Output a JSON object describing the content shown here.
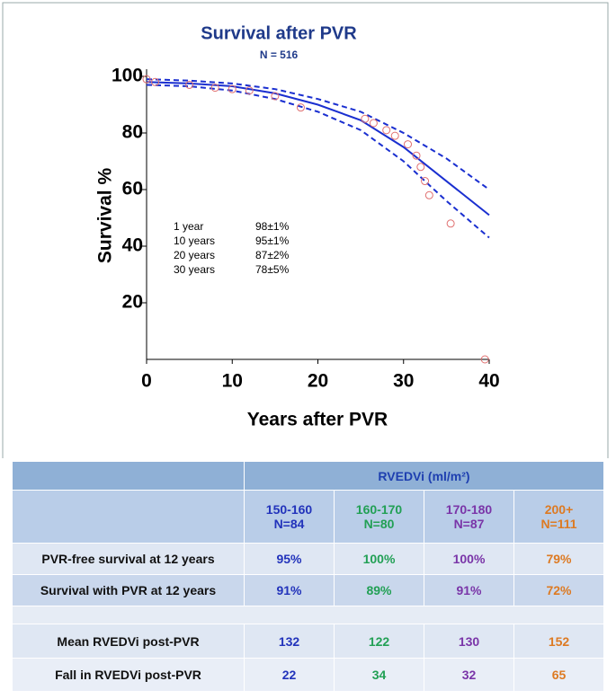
{
  "chart_data": {
    "type": "line",
    "title": "Survival after PVR",
    "subtitle": "N = 516",
    "y_label": "Survival %",
    "x_label": "Years after PVR",
    "x": [
      0,
      5,
      10,
      15,
      20,
      25,
      30,
      35,
      40
    ],
    "series": [
      {
        "color": "#1a2fd0",
        "style": "solid",
        "values": [
          98,
          97.5,
          96.5,
          94,
          90,
          84.5,
          75,
          63,
          51
        ]
      },
      {
        "color": "#1a2fd0",
        "style": "dashed",
        "values": [
          99,
          98.5,
          97.5,
          95.5,
          92,
          87.5,
          80,
          71,
          60
        ]
      },
      {
        "color": "#1a2fd0",
        "style": "dashed",
        "values": [
          97,
          96.5,
          95,
          92,
          87.5,
          81,
          70,
          56,
          43
        ]
      }
    ],
    "points": {
      "color": "#e07070",
      "x": [
        0,
        1,
        5,
        8,
        10,
        12,
        15,
        18,
        25.5,
        26.5,
        28,
        29,
        30.5,
        31.5,
        32,
        32.5,
        33,
        35.5,
        39.5
      ],
      "y": [
        99,
        98,
        97,
        96,
        95.5,
        95,
        93,
        89,
        85,
        83.5,
        81,
        79,
        76,
        72,
        68,
        63,
        58,
        48,
        0
      ]
    },
    "xlim": [
      0,
      40
    ],
    "xticks": [
      0,
      10,
      20,
      30,
      40
    ],
    "ylim": [
      0,
      100
    ],
    "yticks": [
      20,
      40,
      60,
      80,
      100
    ],
    "annotations": [
      {
        "label": "1 year",
        "value": "98±1%"
      },
      {
        "label": "10 years",
        "value": "95±1%"
      },
      {
        "label": "20 years",
        "value": "87±2%"
      },
      {
        "label": "30 years",
        "value": "78±5%"
      }
    ]
  },
  "table": {
    "group_header": "RVEDVi (ml/m²)",
    "columns": [
      {
        "range": "150-160",
        "n": "N=84",
        "color": "#2233bb"
      },
      {
        "range": "160-170",
        "n": "N=80",
        "color": "#22a055"
      },
      {
        "range": "170-180",
        "n": "N=87",
        "color": "#7a35a8"
      },
      {
        "range": "200+",
        "n": "N=111",
        "color": "#dd7a22"
      }
    ],
    "rows": [
      {
        "label": "PVR-free survival at 12 years",
        "cells": [
          "95%",
          "100%",
          "100%",
          "79%"
        ]
      },
      {
        "label": "Survival with PVR at 12 years",
        "cells": [
          "91%",
          "89%",
          "91%",
          "72%"
        ]
      },
      {
        "label": "Mean RVEDVi post-PVR",
        "cells": [
          "132",
          "122",
          "130",
          "152"
        ]
      },
      {
        "label": "Fall in RVEDVi post-PVR",
        "cells": [
          "22",
          "34",
          "32",
          "65"
        ]
      }
    ]
  }
}
